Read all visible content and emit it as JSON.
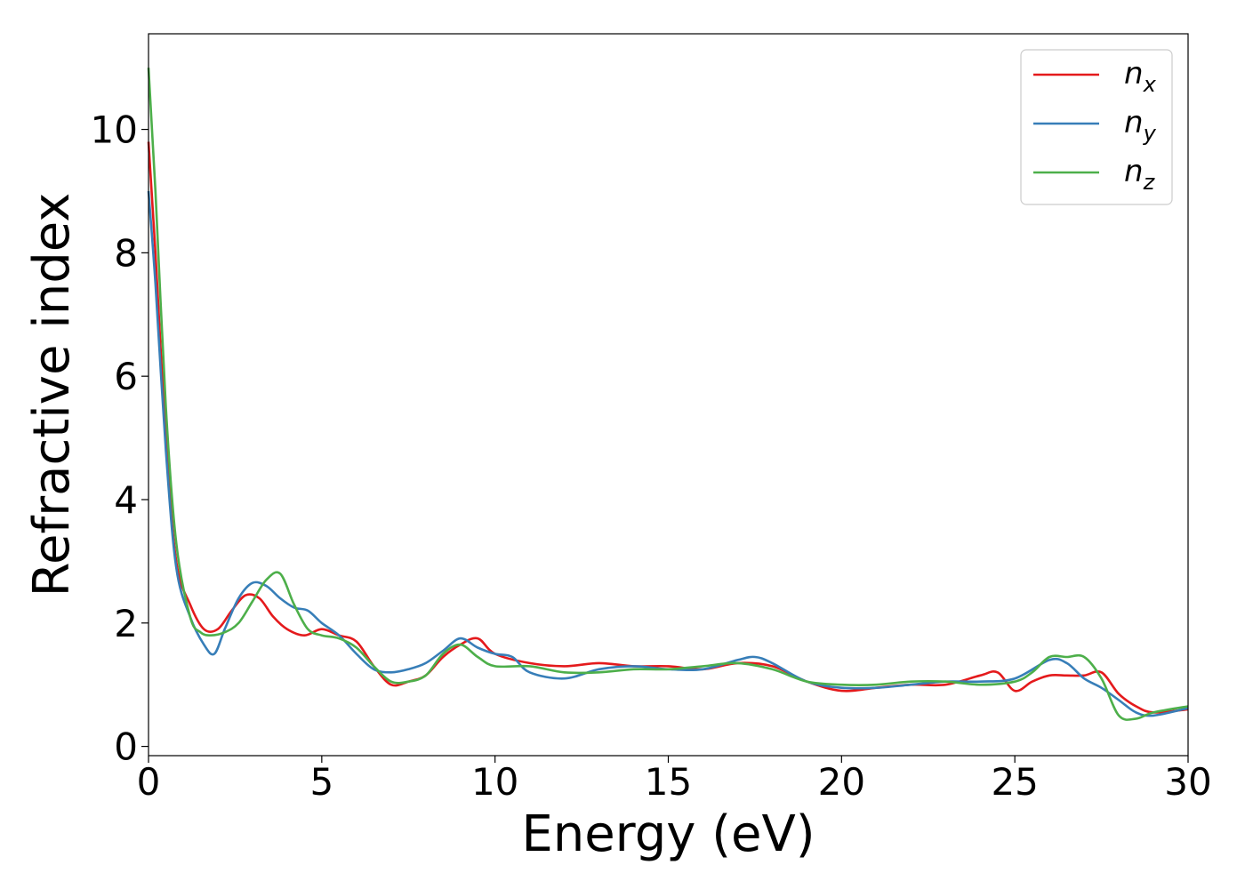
{
  "chart_data": {
    "type": "line",
    "xlabel": "Energy (eV)",
    "ylabel": "Refractive index",
    "xlim": [
      0,
      30
    ],
    "ylim": [
      -0.15,
      11.55
    ],
    "xticks": [
      0,
      5,
      10,
      15,
      20,
      25,
      30
    ],
    "yticks": [
      0,
      2,
      4,
      6,
      8,
      10
    ],
    "grid": false,
    "legend_position": "top-right",
    "series": [
      {
        "name": "n",
        "sub": "x",
        "color": "#e41a1c",
        "x": [
          0,
          0.2,
          0.5,
          0.8,
          1.2,
          1.6,
          2.0,
          2.4,
          2.8,
          3.2,
          3.6,
          4.0,
          4.5,
          5.0,
          5.5,
          6.0,
          6.5,
          7.0,
          7.5,
          8.0,
          8.5,
          9.0,
          9.5,
          10.0,
          11.0,
          12.0,
          13.0,
          14.0,
          15.0,
          16.0,
          17.0,
          18.0,
          19.0,
          20.0,
          21.0,
          22.0,
          23.0,
          24.0,
          24.5,
          25.0,
          25.5,
          26.0,
          26.5,
          27.0,
          27.5,
          28.0,
          28.5,
          29.0,
          30.0
        ],
        "y": [
          9.8,
          8.0,
          5.0,
          3.0,
          2.3,
          1.9,
          1.9,
          2.2,
          2.45,
          2.4,
          2.1,
          1.9,
          1.8,
          1.9,
          1.8,
          1.7,
          1.3,
          1.0,
          1.05,
          1.15,
          1.45,
          1.65,
          1.75,
          1.5,
          1.35,
          1.3,
          1.35,
          1.3,
          1.3,
          1.25,
          1.35,
          1.3,
          1.05,
          0.9,
          0.95,
          1.0,
          1.0,
          1.15,
          1.2,
          0.9,
          1.05,
          1.15,
          1.15,
          1.15,
          1.2,
          0.85,
          0.65,
          0.55,
          0.6
        ]
      },
      {
        "name": "n",
        "sub": "y",
        "color": "#377eb8",
        "x": [
          0,
          0.2,
          0.5,
          0.8,
          1.2,
          1.6,
          1.9,
          2.2,
          2.6,
          3.0,
          3.4,
          3.8,
          4.2,
          4.6,
          5.0,
          5.5,
          6.0,
          6.5,
          7.0,
          7.5,
          8.0,
          8.5,
          9.0,
          9.5,
          10.0,
          10.5,
          11.0,
          12.0,
          13.0,
          14.0,
          15.0,
          16.0,
          17.0,
          17.5,
          18.0,
          19.0,
          20.0,
          21.0,
          22.0,
          23.0,
          24.0,
          25.0,
          26.0,
          26.5,
          27.0,
          27.5,
          28.0,
          28.5,
          29.0,
          30.0
        ],
        "y": [
          9.0,
          7.5,
          4.8,
          2.9,
          2.1,
          1.65,
          1.5,
          1.9,
          2.4,
          2.65,
          2.6,
          2.4,
          2.25,
          2.2,
          2.0,
          1.8,
          1.5,
          1.25,
          1.2,
          1.25,
          1.35,
          1.55,
          1.75,
          1.6,
          1.5,
          1.45,
          1.2,
          1.1,
          1.25,
          1.3,
          1.25,
          1.25,
          1.4,
          1.45,
          1.35,
          1.05,
          0.95,
          0.95,
          1.0,
          1.05,
          1.05,
          1.1,
          1.4,
          1.35,
          1.1,
          0.95,
          0.75,
          0.55,
          0.5,
          0.62
        ]
      },
      {
        "name": "n",
        "sub": "z",
        "color": "#4daf4a",
        "x": [
          0,
          0.2,
          0.5,
          0.8,
          1.2,
          1.5,
          1.8,
          2.2,
          2.6,
          3.0,
          3.4,
          3.8,
          4.2,
          4.6,
          5.0,
          5.5,
          6.0,
          6.5,
          7.0,
          7.5,
          8.0,
          8.5,
          9.0,
          9.5,
          10.0,
          11.0,
          12.0,
          13.0,
          14.0,
          15.0,
          16.0,
          17.0,
          18.0,
          19.0,
          20.0,
          21.0,
          22.0,
          23.0,
          24.0,
          25.0,
          25.5,
          26.0,
          26.5,
          27.0,
          27.5,
          28.0,
          28.5,
          29.0,
          30.0
        ],
        "y": [
          11.0,
          9.0,
          5.5,
          3.3,
          2.1,
          1.85,
          1.8,
          1.85,
          2.0,
          2.35,
          2.7,
          2.8,
          2.3,
          1.9,
          1.8,
          1.75,
          1.6,
          1.3,
          1.05,
          1.05,
          1.15,
          1.5,
          1.65,
          1.45,
          1.3,
          1.3,
          1.2,
          1.2,
          1.25,
          1.25,
          1.3,
          1.35,
          1.25,
          1.05,
          1.0,
          1.0,
          1.05,
          1.05,
          1.0,
          1.05,
          1.2,
          1.45,
          1.45,
          1.45,
          1.1,
          0.5,
          0.45,
          0.55,
          0.65
        ]
      }
    ]
  }
}
